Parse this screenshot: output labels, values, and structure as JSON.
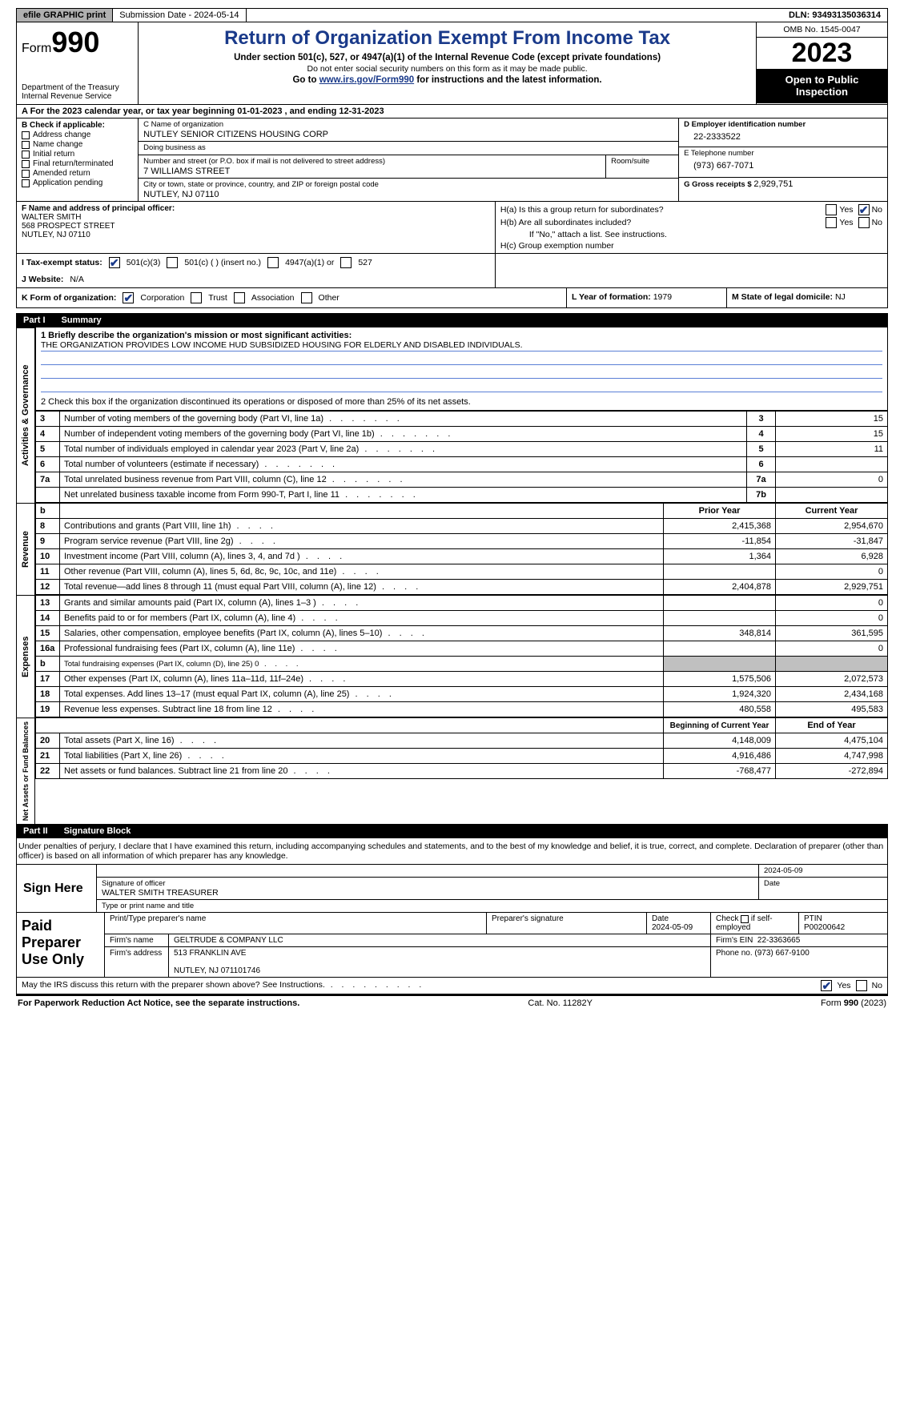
{
  "topbar": {
    "efile": "efile GRAPHIC print",
    "sub_label": "Submission Date - 2024-05-14",
    "dln": "DLN: 93493135036314"
  },
  "header": {
    "form_word": "Form",
    "form_num": "990",
    "dept": "Department of the Treasury",
    "irs": "Internal Revenue Service",
    "title": "Return of Organization Exempt From Income Tax",
    "sub": "Under section 501(c), 527, or 4947(a)(1) of the Internal Revenue Code (except private foundations)",
    "ssn": "Do not enter social security numbers on this form as it may be made public.",
    "goto_pre": "Go to ",
    "goto_link": "www.irs.gov/Form990",
    "goto_post": " for instructions and the latest information.",
    "omb": "OMB No. 1545-0047",
    "year": "2023",
    "otp1": "Open to Public",
    "otp2": "Inspection"
  },
  "line_a": "A For the 2023 calendar year, or tax year beginning 01-01-2023   , and ending 12-31-2023",
  "box_b": {
    "title": "B Check if applicable:",
    "items": [
      "Address change",
      "Name change",
      "Initial return",
      "Final return/terminated",
      "Amended return",
      "Application pending"
    ]
  },
  "box_c": {
    "name_label": "C Name of organization",
    "name": "NUTLEY SENIOR CITIZENS HOUSING CORP",
    "dba_label": "Doing business as",
    "dba": "",
    "street_label": "Number and street (or P.O. box if mail is not delivered to street address)",
    "street": "7 WILLIAMS STREET",
    "room_label": "Room/suite",
    "city_label": "City or town, state or province, country, and ZIP or foreign postal code",
    "city": "NUTLEY, NJ  07110"
  },
  "box_right": {
    "d_label": "D Employer identification number",
    "d_val": "22-2333522",
    "e_label": "E Telephone number",
    "e_val": "(973) 667-7071",
    "g_label": "G Gross receipts $",
    "g_val": "2,929,751"
  },
  "box_f": {
    "label": "F  Name and address of principal officer:",
    "name": "WALTER SMITH",
    "street": "568 PROSPECT STREET",
    "city": "NUTLEY, NJ  07110"
  },
  "box_h": {
    "ha": "H(a)  Is this a group return for subordinates?",
    "hb": "H(b)  Are all subordinates included?",
    "hb_note": "If \"No,\" attach a list. See instructions.",
    "hc": "H(c)  Group exemption number",
    "yes": "Yes",
    "no": "No"
  },
  "row_i": {
    "label": "I   Tax-exempt status:",
    "o1": "501(c)(3)",
    "o2": "501(c) (  ) (insert no.)",
    "o3": "4947(a)(1) or",
    "o4": "527"
  },
  "row_j": {
    "label": "J   Website:",
    "val": "N/A"
  },
  "row_k": {
    "label": "K Form of organization:",
    "opts": [
      "Corporation",
      "Trust",
      "Association",
      "Other"
    ],
    "l_label": "L Year of formation:",
    "l_val": "1979",
    "m_label": "M State of legal domicile:",
    "m_val": "NJ"
  },
  "part1": {
    "part": "Part I",
    "title": "Summary"
  },
  "summary": {
    "s1_label": "1   Briefly describe the organization's mission or most significant activities:",
    "s1_text": "THE ORGANIZATION PROVIDES LOW INCOME HUD SUBSIDIZED HOUSING FOR ELDERLY AND DISABLED INDIVIDUALS.",
    "s2": "2    Check this box         if the organization discontinued its operations or disposed of more than 25% of its net assets.",
    "side_ag": "Activities & Governance",
    "side_rev": "Revenue",
    "side_exp": "Expenses",
    "side_net": "Net Assets or Fund Balances",
    "rows_ag": [
      {
        "n": "3",
        "d": "Number of voting members of the governing body (Part VI, line 1a)",
        "k": "3",
        "v": "15"
      },
      {
        "n": "4",
        "d": "Number of independent voting members of the governing body (Part VI, line 1b)",
        "k": "4",
        "v": "15"
      },
      {
        "n": "5",
        "d": "Total number of individuals employed in calendar year 2023 (Part V, line 2a)",
        "k": "5",
        "v": "11"
      },
      {
        "n": "6",
        "d": "Total number of volunteers (estimate if necessary)",
        "k": "6",
        "v": ""
      },
      {
        "n": "7a",
        "d": "Total unrelated business revenue from Part VIII, column (C), line 12",
        "k": "7a",
        "v": "0"
      },
      {
        "n": "",
        "d": "Net unrelated business taxable income from Form 990-T, Part I, line 11",
        "k": "7b",
        "v": ""
      }
    ],
    "hdr_b": "b",
    "hdr_py": "Prior Year",
    "hdr_cy": "Current Year",
    "rows_rev": [
      {
        "n": "8",
        "d": "Contributions and grants (Part VIII, line 1h)",
        "py": "2,415,368",
        "cy": "2,954,670"
      },
      {
        "n": "9",
        "d": "Program service revenue (Part VIII, line 2g)",
        "py": "-11,854",
        "cy": "-31,847"
      },
      {
        "n": "10",
        "d": "Investment income (Part VIII, column (A), lines 3, 4, and 7d )",
        "py": "1,364",
        "cy": "6,928"
      },
      {
        "n": "11",
        "d": "Other revenue (Part VIII, column (A), lines 5, 6d, 8c, 9c, 10c, and 11e)",
        "py": "",
        "cy": "0"
      },
      {
        "n": "12",
        "d": "Total revenue—add lines 8 through 11 (must equal Part VIII, column (A), line 12)",
        "py": "2,404,878",
        "cy": "2,929,751"
      }
    ],
    "rows_exp": [
      {
        "n": "13",
        "d": "Grants and similar amounts paid (Part IX, column (A), lines 1–3 )",
        "py": "",
        "cy": "0"
      },
      {
        "n": "14",
        "d": "Benefits paid to or for members (Part IX, column (A), line 4)",
        "py": "",
        "cy": "0"
      },
      {
        "n": "15",
        "d": "Salaries, other compensation, employee benefits (Part IX, column (A), lines 5–10)",
        "py": "348,814",
        "cy": "361,595"
      },
      {
        "n": "16a",
        "d": "Professional fundraising fees (Part IX, column (A), line 11e)",
        "py": "",
        "cy": "0"
      },
      {
        "n": "b",
        "d": "Total fundraising expenses (Part IX, column (D), line 25) 0",
        "py": "SHADE",
        "cy": "SHADE"
      },
      {
        "n": "17",
        "d": "Other expenses (Part IX, column (A), lines 11a–11d, 11f–24e)",
        "py": "1,575,506",
        "cy": "2,072,573"
      },
      {
        "n": "18",
        "d": "Total expenses. Add lines 13–17 (must equal Part IX, column (A), line 25)",
        "py": "1,924,320",
        "cy": "2,434,168"
      },
      {
        "n": "19",
        "d": "Revenue less expenses. Subtract line 18 from line 12",
        "py": "480,558",
        "cy": "495,583"
      }
    ],
    "hdr_boc": "Beginning of Current Year",
    "hdr_eoy": "End of Year",
    "rows_net": [
      {
        "n": "20",
        "d": "Total assets (Part X, line 16)",
        "py": "4,148,009",
        "cy": "4,475,104"
      },
      {
        "n": "21",
        "d": "Total liabilities (Part X, line 26)",
        "py": "4,916,486",
        "cy": "4,747,998"
      },
      {
        "n": "22",
        "d": "Net assets or fund balances. Subtract line 21 from line 20",
        "py": "-768,477",
        "cy": "-272,894"
      }
    ]
  },
  "part2": {
    "part": "Part II",
    "title": "Signature Block"
  },
  "sig": {
    "intro": "Under penalties of perjury, I declare that I have examined this return, including accompanying schedules and statements, and to the best of my knowledge and belief, it is true, correct, and complete. Declaration of preparer (other than officer) is based on all information of which preparer has any knowledge.",
    "sign_here": "Sign Here",
    "date_top": "2024-05-09",
    "sig_of": "Signature of officer",
    "sig_name": "WALTER SMITH  TREASURER",
    "type_title": "Type or print name and title",
    "date_lbl": "Date",
    "ppu": "Paid Preparer Use Only",
    "pp_h1": "Print/Type preparer's name",
    "pp_h2": "Preparer's signature",
    "pp_h3": "Date",
    "pp_date": "2024-05-09",
    "pp_h4_a": "Check",
    "pp_h4_b": "if self-employed",
    "pp_h5": "PTIN",
    "ptin": "P00200642",
    "firm_name_l": "Firm's name",
    "firm_name": "GELTRUDE & COMPANY LLC",
    "firm_ein_l": "Firm's EIN",
    "firm_ein": "22-3363665",
    "firm_addr_l": "Firm's address",
    "firm_addr1": "513 FRANKLIN AVE",
    "firm_addr2": "NUTLEY, NJ  071101746",
    "firm_phone_l": "Phone no.",
    "firm_phone": "(973) 667-9100",
    "discuss": "May the IRS discuss this return with the preparer shown above? See Instructions."
  },
  "footer": {
    "pra": "For Paperwork Reduction Act Notice, see the separate instructions.",
    "cat": "Cat. No. 11282Y",
    "form": "Form 990 (2023)"
  }
}
